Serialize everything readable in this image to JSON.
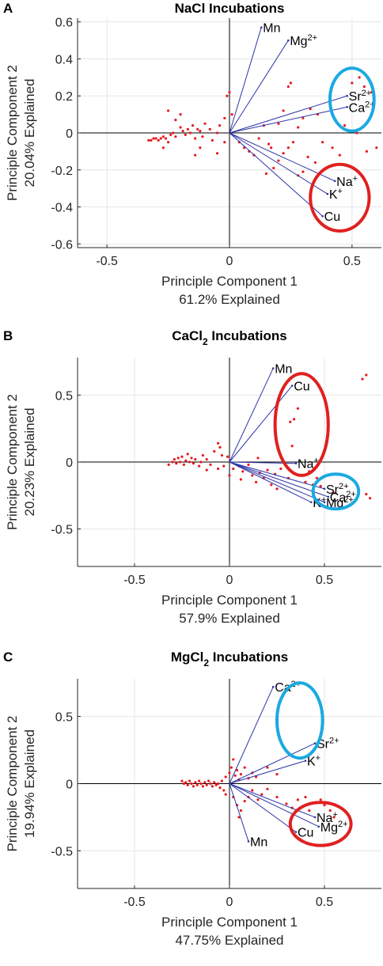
{
  "chart_data": [
    {
      "panel": "A",
      "type": "scatter",
      "title": "NaCl Incubations",
      "xlabel": "Principle Component 1",
      "xsub": "61.2% Explained",
      "ylabel": "Principle Component 2",
      "ysub": "20.04% Explained",
      "xlim": [
        -0.62,
        0.62
      ],
      "ylim": [
        -0.62,
        0.62
      ],
      "xticks": [
        -0.5,
        0,
        0.5
      ],
      "xtick_labels": [
        "-0.5",
        "0",
        "0.5"
      ],
      "yticks": [
        -0.6,
        -0.4,
        -0.2,
        0,
        0.2,
        0.4,
        0.6
      ],
      "ytick_labels": [
        "-0.6",
        "-0.4",
        "-0.2",
        "0",
        "0.2",
        "0.4",
        "0.6"
      ],
      "grid": true,
      "vectors": [
        {
          "label": "Mn",
          "sup": "",
          "x": 0.13,
          "y": 0.57
        },
        {
          "label": "Mg",
          "sup": "2+",
          "x": 0.24,
          "y": 0.5
        },
        {
          "label": "Sr",
          "sup": "2+",
          "x": 0.48,
          "y": 0.2
        },
        {
          "label": "Ca",
          "sup": "2+",
          "x": 0.48,
          "y": 0.14
        },
        {
          "label": "Na",
          "sup": "+",
          "x": 0.43,
          "y": -0.26
        },
        {
          "label": "K",
          "sup": "+",
          "x": 0.4,
          "y": -0.33
        },
        {
          "label": "Cu",
          "sup": "",
          "x": 0.38,
          "y": -0.45
        }
      ],
      "circles": [
        {
          "color": "#1ba9e1",
          "cx": 0.5,
          "cy": 0.18,
          "rx": 0.09,
          "ry": 0.17
        },
        {
          "color": "#e02020",
          "cx": 0.45,
          "cy": -0.35,
          "rx": 0.12,
          "ry": 0.18
        }
      ],
      "points": [
        [
          -0.33,
          -0.04
        ],
        [
          -0.32,
          -0.04
        ],
        [
          -0.31,
          -0.03
        ],
        [
          -0.3,
          -0.03
        ],
        [
          -0.29,
          -0.04
        ],
        [
          -0.28,
          -0.03
        ],
        [
          -0.27,
          -0.02
        ],
        [
          -0.26,
          -0.03
        ],
        [
          -0.25,
          -0.05
        ],
        [
          -0.24,
          -0.01
        ],
        [
          -0.23,
          0.0
        ],
        [
          -0.22,
          -0.02
        ],
        [
          -0.2,
          0.03
        ],
        [
          -0.19,
          0.01
        ],
        [
          -0.18,
          -0.01
        ],
        [
          -0.17,
          0.02
        ],
        [
          -0.16,
          0.0
        ],
        [
          -0.15,
          0.04
        ],
        [
          -0.14,
          -0.03
        ],
        [
          -0.13,
          0.02
        ],
        [
          -0.12,
          0.01
        ],
        [
          -0.11,
          -0.02
        ],
        [
          -0.1,
          0.05
        ],
        [
          -0.08,
          0.02
        ],
        [
          -0.07,
          -0.04
        ],
        [
          -0.05,
          0.0
        ],
        [
          -0.04,
          0.04
        ],
        [
          -0.02,
          0.08
        ],
        [
          -0.01,
          0.2
        ],
        [
          0.0,
          0.22
        ],
        [
          0.01,
          0.1
        ],
        [
          -0.02,
          -0.05
        ],
        [
          -0.05,
          -0.11
        ],
        [
          -0.12,
          -0.08
        ],
        [
          -0.14,
          -0.12
        ],
        [
          -0.2,
          0.1
        ],
        [
          -0.25,
          0.12
        ],
        [
          -0.22,
          0.07
        ],
        [
          -0.27,
          -0.08
        ],
        [
          0.04,
          -0.05
        ],
        [
          0.06,
          -0.08
        ],
        [
          0.08,
          -0.1
        ],
        [
          0.1,
          -0.12
        ],
        [
          0.12,
          -0.03
        ],
        [
          0.14,
          0.04
        ],
        [
          0.16,
          -0.06
        ],
        [
          0.15,
          -0.22
        ],
        [
          0.18,
          -0.19
        ],
        [
          0.2,
          -0.15
        ],
        [
          0.22,
          -0.11
        ],
        [
          0.24,
          -0.08
        ],
        [
          0.26,
          -0.05
        ],
        [
          0.28,
          0.03
        ],
        [
          0.3,
          0.08
        ],
        [
          0.2,
          0.05
        ],
        [
          0.25,
          0.27
        ],
        [
          0.24,
          0.25
        ],
        [
          0.22,
          0.12
        ],
        [
          0.33,
          0.13
        ],
        [
          0.36,
          0.1
        ],
        [
          0.38,
          -0.05
        ],
        [
          0.42,
          -0.08
        ],
        [
          0.45,
          -0.12
        ],
        [
          0.5,
          0.27
        ],
        [
          0.53,
          0.3
        ],
        [
          0.55,
          0.25
        ],
        [
          0.58,
          0.22
        ],
        [
          0.6,
          -0.08
        ],
        [
          0.56,
          -0.1
        ],
        [
          0.47,
          0.04
        ],
        [
          0.52,
          0.0
        ],
        [
          0.32,
          -0.13
        ],
        [
          0.35,
          -0.16
        ],
        [
          0.3,
          -0.21
        ],
        [
          0.28,
          -0.23
        ],
        [
          0.17,
          -0.08
        ]
      ]
    },
    {
      "panel": "B",
      "type": "scatter",
      "title": "CaCl",
      "title_sub": "2",
      "title_rest": " Incubations",
      "xlabel": "Principle Component 1",
      "xsub": "57.9% Explained",
      "ylabel": "Principle Component 2",
      "ysub": "20.23% Explained",
      "xlim": [
        -0.8,
        0.8
      ],
      "ylim": [
        -0.78,
        0.78
      ],
      "xticks": [
        -0.5,
        0,
        0.5
      ],
      "xtick_labels": [
        "-0.5",
        "0",
        "0.5"
      ],
      "yticks": [
        -0.5,
        0,
        0.5
      ],
      "ytick_labels": [
        "-0.5",
        "0",
        "0.5"
      ],
      "grid": true,
      "vectors": [
        {
          "label": "Mn",
          "sup": "",
          "x": 0.23,
          "y": 0.7
        },
        {
          "label": "Cu",
          "sup": "",
          "x": 0.33,
          "y": 0.57
        },
        {
          "label": "Na",
          "sup": "+",
          "x": 0.35,
          "y": -0.01
        },
        {
          "label": "Sr",
          "sup": "2+",
          "x": 0.5,
          "y": -0.2
        },
        {
          "label": "Ca",
          "sup": "2+",
          "x": 0.52,
          "y": -0.26
        },
        {
          "label": "K",
          "sup": "+",
          "x": 0.43,
          "y": -0.3
        },
        {
          "label": "Mg",
          "sup": "2+",
          "x": 0.5,
          "y": -0.3
        }
      ],
      "circles": [
        {
          "color": "#e02020",
          "cx": 0.38,
          "cy": 0.28,
          "rx": 0.14,
          "ry": 0.38
        },
        {
          "color": "#1ba9e1",
          "cx": 0.56,
          "cy": -0.22,
          "rx": 0.12,
          "ry": 0.13
        }
      ],
      "points": [
        [
          -0.32,
          -0.02
        ],
        [
          -0.3,
          0.0
        ],
        [
          -0.29,
          0.02
        ],
        [
          -0.28,
          -0.01
        ],
        [
          -0.27,
          0.03
        ],
        [
          -0.26,
          0.0
        ],
        [
          -0.25,
          0.04
        ],
        [
          -0.24,
          -0.02
        ],
        [
          -0.23,
          0.01
        ],
        [
          -0.22,
          0.06
        ],
        [
          -0.21,
          0.0
        ],
        [
          -0.2,
          0.03
        ],
        [
          -0.19,
          -0.01
        ],
        [
          -0.18,
          0.02
        ],
        [
          -0.16,
          -0.03
        ],
        [
          -0.15,
          0.0
        ],
        [
          -0.14,
          0.05
        ],
        [
          -0.12,
          0.02
        ],
        [
          -0.1,
          -0.02
        ],
        [
          -0.08,
          0.08
        ],
        [
          -0.06,
          0.14
        ],
        [
          -0.04,
          0.05
        ],
        [
          -0.03,
          -0.03
        ],
        [
          -0.06,
          -0.05
        ],
        [
          -0.12,
          -0.06
        ],
        [
          -0.05,
          0.11
        ],
        [
          0.0,
          -0.1
        ],
        [
          0.02,
          -0.05
        ],
        [
          0.05,
          -0.03
        ],
        [
          0.07,
          -0.07
        ],
        [
          0.1,
          -0.02
        ],
        [
          0.12,
          -0.1
        ],
        [
          0.14,
          -0.15
        ],
        [
          0.16,
          -0.08
        ],
        [
          0.18,
          -0.12
        ],
        [
          0.2,
          -0.06
        ],
        [
          0.22,
          -0.17
        ],
        [
          0.24,
          -0.09
        ],
        [
          0.25,
          -0.2
        ],
        [
          0.27,
          -0.05
        ],
        [
          0.3,
          -0.03
        ],
        [
          0.31,
          -0.12
        ],
        [
          0.32,
          0.3
        ],
        [
          0.34,
          0.32
        ],
        [
          0.36,
          0.4
        ],
        [
          0.33,
          0.12
        ],
        [
          0.38,
          -0.1
        ],
        [
          0.4,
          -0.15
        ],
        [
          0.42,
          -0.07
        ],
        [
          0.44,
          -0.17
        ],
        [
          0.46,
          -0.12
        ],
        [
          0.48,
          -0.18
        ],
        [
          0.7,
          0.62
        ],
        [
          0.72,
          0.65
        ],
        [
          0.72,
          -0.24
        ],
        [
          0.74,
          -0.27
        ],
        [
          0.55,
          -0.23
        ],
        [
          0.06,
          -0.13
        ],
        [
          0.15,
          0.03
        ],
        [
          -0.01,
          0.04
        ]
      ]
    },
    {
      "panel": "C",
      "type": "scatter",
      "title": "MgCl",
      "title_sub": "2",
      "title_rest": " Incubations",
      "xlabel": "Principle Component 1",
      "xsub": "47.75% Explained",
      "ylabel": "Principle Component 2",
      "ysub": "19.94% Explained",
      "xlim": [
        -0.8,
        0.8
      ],
      "ylim": [
        -0.78,
        0.78
      ],
      "xticks": [
        -0.5,
        0,
        0.5
      ],
      "xtick_labels": [
        "-0.5",
        "0",
        "0.5"
      ],
      "yticks": [
        -0.5,
        0,
        0.5
      ],
      "ytick_labels": [
        "-0.5",
        "0",
        "0.5"
      ],
      "grid": true,
      "vectors": [
        {
          "label": "Ca",
          "sup": "2+",
          "x": 0.23,
          "y": 0.72
        },
        {
          "label": "Sr",
          "sup": "2+",
          "x": 0.45,
          "y": 0.3
        },
        {
          "label": "K",
          "sup": "+",
          "x": 0.4,
          "y": 0.17
        },
        {
          "label": "Na",
          "sup": "+",
          "x": 0.45,
          "y": -0.25
        },
        {
          "label": "Mg",
          "sup": "2+",
          "x": 0.47,
          "y": -0.32
        },
        {
          "label": "Cu",
          "sup": "",
          "x": 0.35,
          "y": -0.36
        },
        {
          "label": "Mn",
          "sup": "",
          "x": 0.1,
          "y": -0.43
        }
      ],
      "circles": [
        {
          "color": "#1ba9e1",
          "cx": 0.37,
          "cy": 0.47,
          "rx": 0.12,
          "ry": 0.28
        },
        {
          "color": "#e02020",
          "cx": 0.48,
          "cy": -0.3,
          "rx": 0.16,
          "ry": 0.16
        }
      ],
      "points": [
        [
          -0.25,
          0.02
        ],
        [
          -0.24,
          0.0
        ],
        [
          -0.23,
          0.01
        ],
        [
          -0.22,
          -0.01
        ],
        [
          -0.21,
          0.02
        ],
        [
          -0.2,
          0.0
        ],
        [
          -0.19,
          -0.02
        ],
        [
          -0.18,
          0.01
        ],
        [
          -0.17,
          -0.01
        ],
        [
          -0.16,
          0.02
        ],
        [
          -0.15,
          0.0
        ],
        [
          -0.14,
          -0.02
        ],
        [
          -0.13,
          0.01
        ],
        [
          -0.12,
          -0.01
        ],
        [
          -0.11,
          0.02
        ],
        [
          -0.1,
          0.0
        ],
        [
          -0.09,
          -0.02
        ],
        [
          -0.08,
          0.01
        ],
        [
          -0.07,
          -0.01
        ],
        [
          -0.06,
          0.0
        ],
        [
          -0.05,
          -0.03
        ],
        [
          -0.04,
          0.02
        ],
        [
          -0.03,
          -0.05
        ],
        [
          -0.02,
          -0.08
        ],
        [
          -0.02,
          0.05
        ],
        [
          0.0,
          0.08
        ],
        [
          0.01,
          0.12
        ],
        [
          0.02,
          0.18
        ],
        [
          0.03,
          0.06
        ],
        [
          0.04,
          0.1
        ],
        [
          0.05,
          0.03
        ],
        [
          0.06,
          0.07
        ],
        [
          0.08,
          0.12
        ],
        [
          0.1,
          0.04
        ],
        [
          0.12,
          0.08
        ],
        [
          0.14,
          0.05
        ],
        [
          0.02,
          -0.1
        ],
        [
          0.04,
          -0.16
        ],
        [
          0.06,
          -0.2
        ],
        [
          0.05,
          -0.25
        ],
        [
          0.08,
          -0.13
        ],
        [
          0.1,
          -0.1
        ],
        [
          0.12,
          -0.05
        ],
        [
          0.15,
          -0.12
        ],
        [
          0.17,
          -0.08
        ],
        [
          0.2,
          -0.04
        ],
        [
          0.25,
          -0.1
        ],
        [
          0.3,
          -0.15
        ],
        [
          0.33,
          -0.18
        ],
        [
          0.36,
          -0.12
        ],
        [
          0.4,
          -0.1
        ],
        [
          0.42,
          -0.2
        ],
        [
          0.48,
          -0.12
        ],
        [
          0.5,
          -0.16
        ],
        [
          0.53,
          -0.2
        ],
        [
          0.55,
          -0.25
        ],
        [
          0.2,
          0.12
        ],
        [
          0.25,
          0.07
        ]
      ]
    }
  ]
}
